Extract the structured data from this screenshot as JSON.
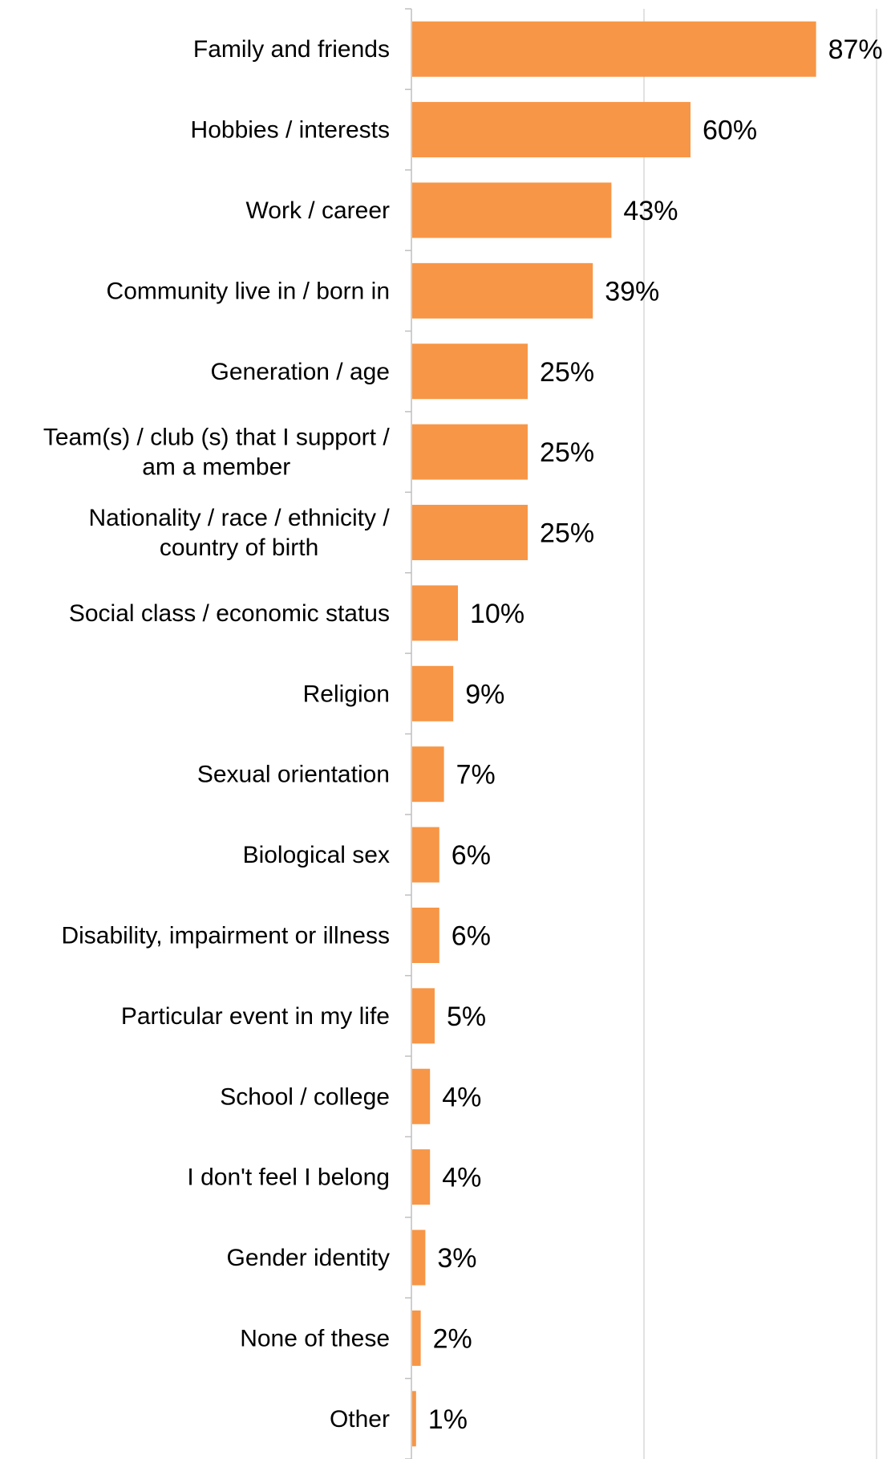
{
  "chart_data": {
    "type": "bar",
    "orientation": "horizontal",
    "categories": [
      "Family and friends",
      "Hobbies / interests",
      "Work / career",
      "Community live in / born in",
      "Generation / age",
      "Team(s) / club (s) that I support / am a member",
      "Nationality / race / ethnicity / country of birth",
      "Social class / economic status",
      "Religion",
      "Sexual orientation",
      "Biological sex",
      "Disability, impairment or illness",
      "Particular event in my life",
      "School / college",
      "I don't feel I belong",
      "Gender identity",
      "None of these",
      "Other"
    ],
    "category_lines": [
      [
        "Family and friends"
      ],
      [
        "Hobbies / interests"
      ],
      [
        "Work / career"
      ],
      [
        "Community live in / born in"
      ],
      [
        "Generation / age"
      ],
      [
        "Team(s) / club (s) that I support /",
        "am a member"
      ],
      [
        "Nationality / race / ethnicity /",
        "country of birth"
      ],
      [
        "Social class / economic status"
      ],
      [
        "Religion"
      ],
      [
        "Sexual orientation"
      ],
      [
        "Biological sex"
      ],
      [
        "Disability, impairment or illness"
      ],
      [
        "Particular event in my life"
      ],
      [
        "School / college"
      ],
      [
        "I don't feel I belong"
      ],
      [
        "Gender identity"
      ],
      [
        "None of these"
      ],
      [
        "Other"
      ]
    ],
    "values": [
      87,
      60,
      43,
      39,
      25,
      25,
      25,
      10,
      9,
      7,
      6,
      6,
      5,
      4,
      4,
      3,
      2,
      1
    ],
    "value_labels": [
      "87%",
      "60%",
      "43%",
      "39%",
      "25%",
      "25%",
      "25%",
      "10%",
      "9%",
      "7%",
      "6%",
      "6%",
      "5%",
      "4%",
      "4%",
      "3%",
      "2%",
      "1%"
    ],
    "xlim": [
      0,
      100
    ],
    "gridlines": [
      50,
      100
    ],
    "grid": true,
    "title": "",
    "xlabel": "",
    "ylabel": "",
    "colors": {
      "bar": "#F79646",
      "grid": "#D9D9D9",
      "axis": "#BFBFBF",
      "text": "#000000"
    }
  }
}
